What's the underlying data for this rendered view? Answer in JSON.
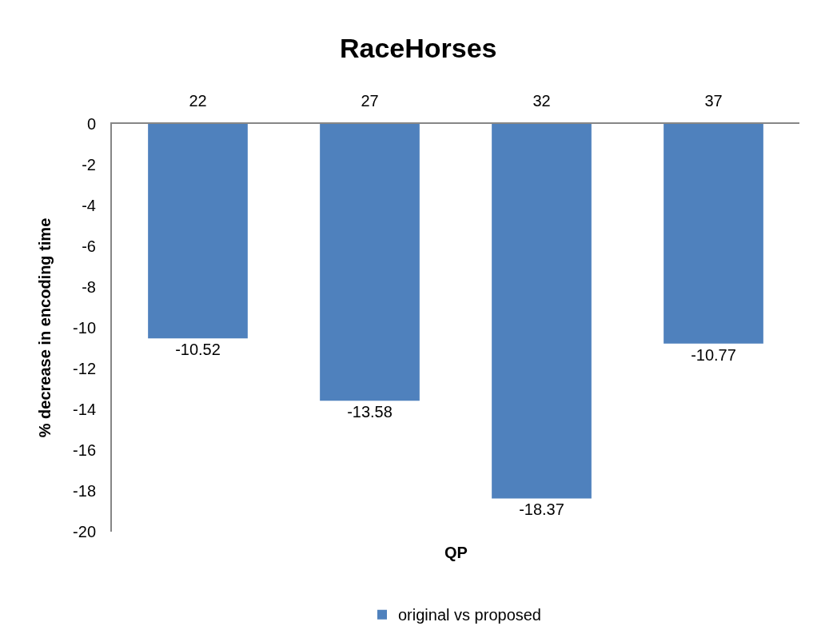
{
  "chart_data": {
    "type": "bar",
    "title": "RaceHorses",
    "xlabel": "QP",
    "ylabel": "% decrease in encoding time",
    "categories": [
      "22",
      "27",
      "32",
      "37"
    ],
    "series": [
      {
        "name": "original vs proposed",
        "color": "#4f81bd",
        "values": [
          -10.52,
          -13.58,
          -18.37,
          -10.77
        ]
      }
    ],
    "ylim": [
      -20,
      0
    ],
    "yticks": [
      0,
      -2,
      -4,
      -6,
      -8,
      -10,
      -12,
      -14,
      -16,
      -18,
      -20
    ],
    "data_labels": true,
    "legend": "bottom",
    "grid": false
  }
}
